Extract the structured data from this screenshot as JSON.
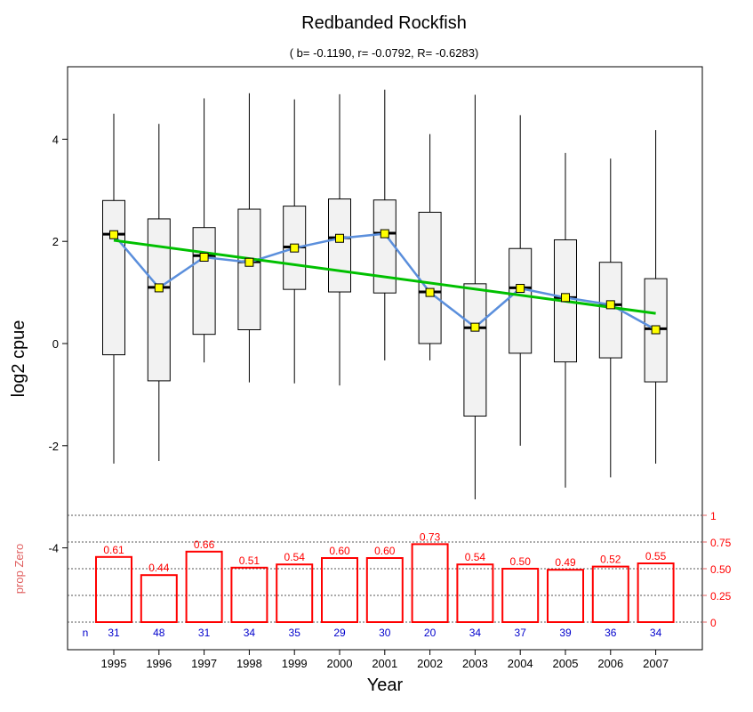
{
  "chart_data": {
    "type": "boxplot",
    "title": "Redbanded Rockfish",
    "subtitle": "( b= -0.1190,  r= -0.0792,  R= -0.6283)",
    "xlabel": "Year",
    "ylabel": "log2 cpue",
    "ylim": [
      -5.6,
      5.1
    ],
    "yticks": [
      -4,
      -2,
      0,
      2,
      4
    ],
    "grid": false,
    "categories": [
      "1995",
      "1996",
      "1997",
      "1998",
      "1999",
      "2000",
      "2001",
      "2002",
      "2003",
      "2004",
      "2005",
      "2006",
      "2007"
    ],
    "boxes": [
      {
        "whisker_low": -2.35,
        "q1": -0.22,
        "median": 2.14,
        "q3": 2.8,
        "whisker_high": 4.5,
        "mean": 2.13
      },
      {
        "whisker_low": -2.3,
        "q1": -0.73,
        "median": 1.1,
        "q3": 2.44,
        "whisker_high": 4.3,
        "mean": 1.09
      },
      {
        "whisker_low": -0.37,
        "q1": 0.18,
        "median": 1.72,
        "q3": 2.27,
        "whisker_high": 4.8,
        "mean": 1.69
      },
      {
        "whisker_low": -0.76,
        "q1": 0.27,
        "median": 1.6,
        "q3": 2.63,
        "whisker_high": 4.9,
        "mean": 1.59
      },
      {
        "whisker_low": -0.78,
        "q1": 1.06,
        "median": 1.89,
        "q3": 2.69,
        "whisker_high": 4.78,
        "mean": 1.87
      },
      {
        "whisker_low": -0.82,
        "q1": 1.01,
        "median": 2.07,
        "q3": 2.83,
        "whisker_high": 4.88,
        "mean": 2.06
      },
      {
        "whisker_low": -0.33,
        "q1": 0.99,
        "median": 2.16,
        "q3": 2.81,
        "whisker_high": 4.97,
        "mean": 2.15
      },
      {
        "whisker_low": -0.33,
        "q1": 0.0,
        "median": 1.01,
        "q3": 2.57,
        "whisker_high": 4.1,
        "mean": 1.0
      },
      {
        "whisker_low": -3.05,
        "q1": -1.42,
        "median": 0.31,
        "q3": 1.17,
        "whisker_high": 4.87,
        "mean": 0.32
      },
      {
        "whisker_low": -2.0,
        "q1": -0.19,
        "median": 1.09,
        "q3": 1.86,
        "whisker_high": 4.47,
        "mean": 1.08
      },
      {
        "whisker_low": -2.82,
        "q1": -0.36,
        "median": 0.9,
        "q3": 2.03,
        "whisker_high": 3.73,
        "mean": 0.9
      },
      {
        "whisker_low": -2.62,
        "q1": -0.28,
        "median": 0.76,
        "q3": 1.59,
        "whisker_high": 3.62,
        "mean": 0.76
      },
      {
        "whisker_low": -2.35,
        "q1": -0.75,
        "median": 0.29,
        "q3": 1.27,
        "whisker_high": 4.18,
        "mean": 0.27
      }
    ],
    "trend_line": {
      "start": 2.02,
      "end": 0.59,
      "b": -0.119
    },
    "prop_zero": {
      "label": "prop Zero",
      "values": [
        0.61,
        0.44,
        0.66,
        0.51,
        0.54,
        0.6,
        0.6,
        0.73,
        0.54,
        0.5,
        0.49,
        0.52,
        0.55
      ],
      "value_labels": [
        "0.61",
        "0.44",
        "0.66",
        "0.51",
        "0.54",
        "0.60",
        "0.60",
        "0.73",
        "0.54",
        "0.50",
        "0.49",
        "0.52",
        "0.55"
      ],
      "axis_ticks": [
        "0",
        "0.25",
        "0.50",
        "0.75",
        "1"
      ],
      "axis_values": [
        0,
        0.25,
        0.5,
        0.75,
        1
      ]
    },
    "n_label": "n",
    "n_values": [
      "31",
      "48",
      "31",
      "34",
      "35",
      "29",
      "30",
      "20",
      "34",
      "37",
      "39",
      "36",
      "34"
    ],
    "colors": {
      "box_fill": "#f2f2f2",
      "mean_line": "#5b8fdc",
      "mean_marker": "#ffff00",
      "trend": "#00c000",
      "prop_zero": "#ff0000",
      "n_text": "#0000cc",
      "prop_label": "#e06060"
    }
  }
}
